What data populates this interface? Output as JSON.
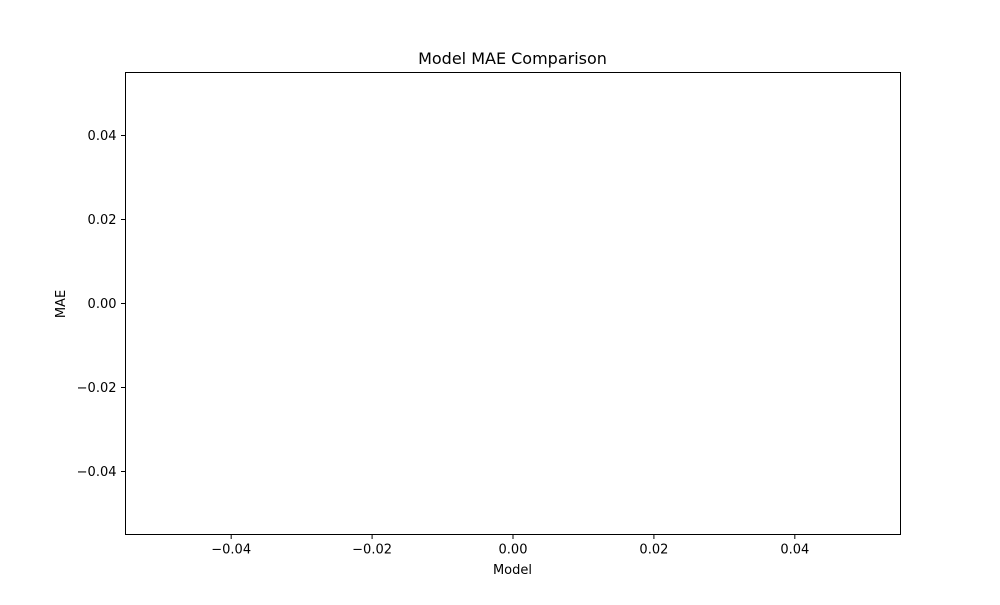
{
  "chart_data": {
    "type": "bar",
    "title": "Model MAE Comparison",
    "xlabel": "Model",
    "ylabel": "MAE",
    "categories": [],
    "values": [],
    "xlim": [
      -0.055,
      0.055
    ],
    "ylim": [
      -0.055,
      0.055
    ],
    "xticks": [
      -0.04,
      -0.02,
      0.0,
      0.02,
      0.04
    ],
    "yticks": [
      -0.04,
      -0.02,
      0.0,
      0.02,
      0.04
    ],
    "xtick_labels": [
      "−0.04",
      "−0.02",
      "0.00",
      "0.02",
      "0.04"
    ],
    "ytick_labels": [
      "−0.04",
      "−0.02",
      "0.00",
      "0.02",
      "0.04"
    ],
    "grid": false,
    "legend": "none"
  }
}
